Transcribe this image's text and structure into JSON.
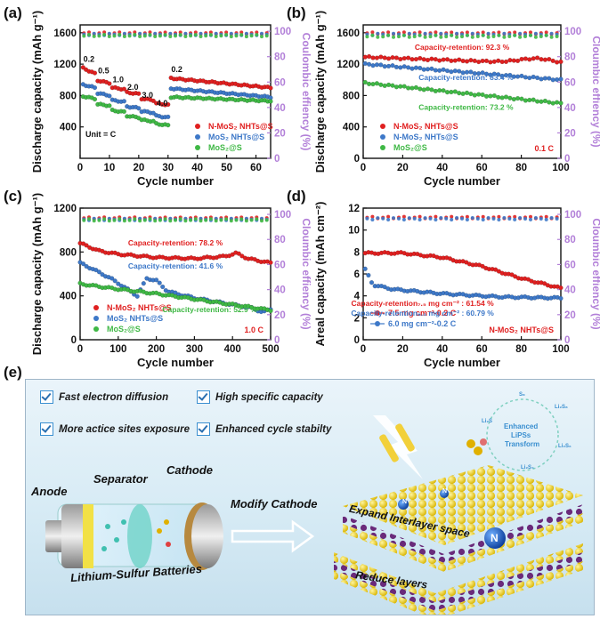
{
  "chart_data": [
    {
      "panel": "(a)",
      "type": "scatter",
      "xlabel": "Cycle number",
      "ylabel": "Discharge capacity (mAh g⁻¹)",
      "y2label": "Coulombic effiency (%)",
      "xlim": [
        0,
        65
      ],
      "ylim": [
        0,
        1700
      ],
      "y2lim": [
        0,
        105
      ],
      "xticks": [
        0,
        10,
        20,
        30,
        40,
        50,
        60
      ],
      "yticks": [
        400,
        800,
        1200,
        1600
      ],
      "y2ticks": [
        0,
        20,
        40,
        60,
        80,
        100
      ],
      "unit_note": "Unit = C",
      "rate_labels": [
        {
          "text": "0.2",
          "x": 3,
          "y": 1230
        },
        {
          "text": "0.5",
          "x": 8,
          "y": 1080
        },
        {
          "text": "1.0",
          "x": 13,
          "y": 970
        },
        {
          "text": "2.0",
          "x": 18,
          "y": 870
        },
        {
          "text": "3.0",
          "x": 23,
          "y": 770
        },
        {
          "text": "4.0",
          "x": 28,
          "y": 670
        },
        {
          "text": "0.2",
          "x": 33,
          "y": 1100
        }
      ],
      "series": [
        {
          "name": "N-MoS₂ NHTs@S",
          "color": "#e02020",
          "steps": [
            [
              1,
              5,
              1150,
              1080
            ],
            [
              6,
              10,
              990,
              960
            ],
            [
              11,
              15,
              900,
              880
            ],
            [
              16,
              20,
              840,
              820
            ],
            [
              21,
              25,
              760,
              740
            ],
            [
              26,
              30,
              700,
              680
            ],
            [
              31,
              65,
              1020,
              900
            ]
          ],
          "ce": 98.5
        },
        {
          "name": "MoS₂ NHTs@S",
          "color": "#3d78c8",
          "steps": [
            [
              1,
              5,
              940,
              900
            ],
            [
              6,
              10,
              830,
              800
            ],
            [
              11,
              15,
              740,
              720
            ],
            [
              16,
              20,
              660,
              640
            ],
            [
              21,
              25,
              600,
              580
            ],
            [
              26,
              30,
              540,
              520
            ],
            [
              31,
              65,
              890,
              780
            ]
          ],
          "ce": 97.5
        },
        {
          "name": "MoS₂@S",
          "color": "#3fb845",
          "steps": [
            [
              1,
              5,
              790,
              760
            ],
            [
              6,
              10,
              690,
              670
            ],
            [
              11,
              15,
              610,
              590
            ],
            [
              16,
              20,
              540,
              520
            ],
            [
              21,
              25,
              490,
              470
            ],
            [
              26,
              30,
              440,
              420
            ],
            [
              31,
              65,
              780,
              730
            ]
          ],
          "ce": 96.5
        }
      ]
    },
    {
      "panel": "(b)",
      "type": "scatter",
      "xlabel": "Cycle number",
      "ylabel": "Discharge capacity (mAh g⁻¹)",
      "y2label": "Cloumbic effiency (%)",
      "xlim": [
        0,
        100
      ],
      "ylim": [
        0,
        1700
      ],
      "y2lim": [
        0,
        105
      ],
      "xticks": [
        0,
        20,
        40,
        60,
        80,
        100
      ],
      "yticks": [
        0,
        400,
        800,
        1200,
        1600
      ],
      "y2ticks": [
        0,
        20,
        40,
        60,
        80,
        100
      ],
      "rate": "0.1 C",
      "annotations": [
        {
          "text": "Capacity-retention: 92.3 %",
          "color": "#e02020",
          "x": 50,
          "y": 1380
        },
        {
          "text": "Capacity-retention: 83.4 %",
          "color": "#3d78c8",
          "x": 52,
          "y": 1000
        },
        {
          "text": "Capacity-retention: 73.2 %",
          "color": "#3fb845",
          "x": 52,
          "y": 620
        }
      ],
      "series": [
        {
          "name": "N-MoS₂ NHTs@S",
          "color": "#e02020",
          "y0": 1290,
          "y1": 1200,
          "bump": 60,
          "ce": 98.5
        },
        {
          "name": "N-MoS₂ NHTs@S",
          "color": "#3d78c8",
          "y0": 1200,
          "y1": 1000,
          "bump": 0,
          "ce": 97.5
        },
        {
          "name": "MoS₂@S",
          "color": "#3fb845",
          "y0": 960,
          "y1": 700,
          "bump": 0,
          "ce": 96
        }
      ]
    },
    {
      "panel": "(c)",
      "type": "scatter",
      "xlabel": "Cycle number",
      "ylabel": "Discharge capacity (mAh g⁻¹)",
      "y2label": "Cloumbic effiency (%)",
      "xlim": [
        0,
        500
      ],
      "ylim": [
        0,
        1200
      ],
      "y2lim": [
        0,
        105
      ],
      "xticks": [
        0,
        100,
        200,
        300,
        400,
        500
      ],
      "yticks": [
        0,
        400,
        800,
        1200
      ],
      "y2ticks": [
        0,
        20,
        40,
        60,
        80,
        100
      ],
      "rate": "1.0 C",
      "annotations": [
        {
          "text": "Capacity-retention: 78.2 %",
          "color": "#e02020",
          "x": 250,
          "y": 860
        },
        {
          "text": "Capacity-retention: 41.6 %",
          "color": "#3d78c8",
          "x": 250,
          "y": 650
        },
        {
          "text": "Capacity-retention: 52.9 %",
          "color": "#3fb845",
          "x": 340,
          "y": 250
        }
      ],
      "series": [
        {
          "name": "N-MoS₂ NHTs@S",
          "color": "#e02020",
          "pts": [
            [
              0,
              880
            ],
            [
              50,
              810
            ],
            [
              100,
              780
            ],
            [
              200,
              750
            ],
            [
              300,
              740
            ],
            [
              380,
              760
            ],
            [
              410,
              790
            ],
            [
              440,
              740
            ],
            [
              500,
              700
            ]
          ],
          "ce": 97
        },
        {
          "name": "MoS₂ NHTs@S",
          "color": "#3d78c8",
          "pts": [
            [
              0,
              700
            ],
            [
              30,
              650
            ],
            [
              80,
              560
            ],
            [
              120,
              470
            ],
            [
              150,
              400
            ],
            [
              175,
              560
            ],
            [
              200,
              540
            ],
            [
              230,
              440
            ],
            [
              300,
              380
            ],
            [
              400,
              320
            ],
            [
              450,
              290
            ],
            [
              480,
              250
            ],
            [
              500,
              280
            ]
          ],
          "ce": 96
        },
        {
          "name": "MoS₂@S",
          "color": "#3fb845",
          "pts": [
            [
              0,
              510
            ],
            [
              80,
              470
            ],
            [
              200,
              420
            ],
            [
              300,
              370
            ],
            [
              400,
              320
            ],
            [
              500,
              270
            ]
          ],
          "ce": 95.5
        }
      ]
    },
    {
      "panel": "(d)",
      "type": "scatter",
      "xlabel": "Cycle number",
      "ylabel": "Areal capacity (mAh cm⁻²)",
      "y2label": "Cloumbic effiency (%)",
      "xlim": [
        0,
        100
      ],
      "ylim": [
        0,
        12
      ],
      "y2lim": [
        0,
        105
      ],
      "xticks": [
        0,
        20,
        40,
        60,
        80,
        100
      ],
      "yticks": [
        0,
        2,
        4,
        6,
        8,
        10,
        12
      ],
      "y2ticks": [
        0,
        20,
        40,
        60,
        80,
        100
      ],
      "material": "N-MoS₂ NHTs@S",
      "annotations": [
        {
          "text": "Capacity-retention₇.₅ mg cm⁻² : 61.54 %",
          "color": "#e02020",
          "x": 30,
          "y": 3.1
        },
        {
          "text": "Capacity-retention₆.₀ mg cm⁻² : 60.79 %",
          "color": "#3d78c8",
          "x": 30,
          "y": 2.2
        }
      ],
      "series": [
        {
          "name": "7.5 mg cm⁻²-0.2 C",
          "color": "#e02020",
          "pts": [
            [
              1,
              7.9
            ],
            [
              20,
              7.9
            ],
            [
              40,
              7.5
            ],
            [
              60,
              6.7
            ],
            [
              80,
              5.6
            ],
            [
              100,
              4.7
            ]
          ],
          "ce": 97.5
        },
        {
          "name": "6.0 mg cm⁻²-0.2 C",
          "color": "#3d78c8",
          "pts": [
            [
              1,
              6.4
            ],
            [
              5,
              5.0
            ],
            [
              15,
              4.6
            ],
            [
              40,
              4.2
            ],
            [
              70,
              3.9
            ],
            [
              100,
              3.8
            ]
          ],
          "ce": 96.5
        }
      ]
    }
  ],
  "schematic": {
    "panel": "(e)",
    "features": [
      "Fast electron diffusion",
      "High specific capacity",
      "More actice sites exposure",
      "Enhanced cycle stabilty"
    ],
    "labels": {
      "anode": "Anode",
      "separator": "Separator",
      "cathode": "Cathode",
      "modify": "Modify Cathode",
      "battery": "Lithium-Sulfur Batteries",
      "expand": "Expand Interlayer space",
      "reduce": "Reduce layers",
      "enhanced": "Enhanced",
      "lipss": "LiPSs",
      "transform": "Transform",
      "n_atom": "N",
      "li2s": "Li₂S",
      "li2s4": "Li₂S₄",
      "li2s6": "Li₂S₆",
      "li2s8": "Li₂S₈",
      "s8": "S₈"
    }
  }
}
